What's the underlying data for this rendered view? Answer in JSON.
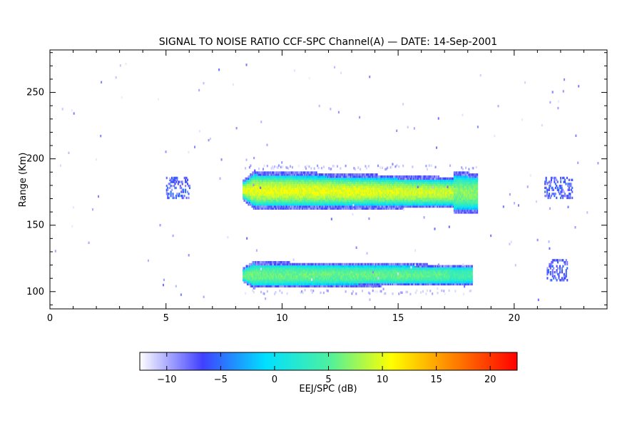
{
  "chart_data": {
    "type": "heatmap",
    "title": "SIGNAL TO NOISE RATIO CCF-SPC Channel(A) — DATE: 14-Sep-2001",
    "xlabel": "",
    "ylabel": "Range (Km)",
    "xlim": [
      0,
      24
    ],
    "ylim": [
      87,
      282
    ],
    "x_ticks": [
      "0",
      "5",
      "10",
      "15",
      "20"
    ],
    "y_ticks": [
      "100",
      "150",
      "200",
      "250"
    ],
    "x_tick_values": [
      0,
      5,
      10,
      15,
      20
    ],
    "y_tick_values": [
      100,
      150,
      200,
      250
    ],
    "colorbar": {
      "label": "EEJ/SPC (dB)",
      "range": [
        -12.5,
        22.5
      ],
      "ticks": [
        "−10",
        "−5",
        "0",
        "5",
        "10",
        "15",
        "20"
      ],
      "tick_values": [
        -10,
        -5,
        0,
        5,
        10,
        15,
        20
      ],
      "colors": [
        "#ffffff",
        "#4040ff",
        "#00e0ff",
        "#4cf0a0",
        "#ffff00",
        "#ff8000",
        "#ff0000"
      ]
    },
    "echo_layers": [
      {
        "region": "upper",
        "time_start": 8.3,
        "time_end": 18.4,
        "range_min": 160,
        "range_max": 195,
        "center_range": 175,
        "peak_snr_db": 10
      },
      {
        "region": "lower",
        "time_start": 8.3,
        "time_end": 18.2,
        "range_min": 97,
        "range_max": 121,
        "center_range": 112,
        "peak_snr_db": 6
      }
    ],
    "weak_echo_patches": [
      {
        "time_start": 5.0,
        "time_end": 6.0,
        "range_center": 178,
        "snr_db": -7
      },
      {
        "time_start": 21.3,
        "time_end": 22.5,
        "range_center": 178,
        "snr_db": -7
      },
      {
        "time_start": 21.4,
        "time_end": 22.3,
        "range_center": 116,
        "snr_db": -7
      }
    ]
  }
}
